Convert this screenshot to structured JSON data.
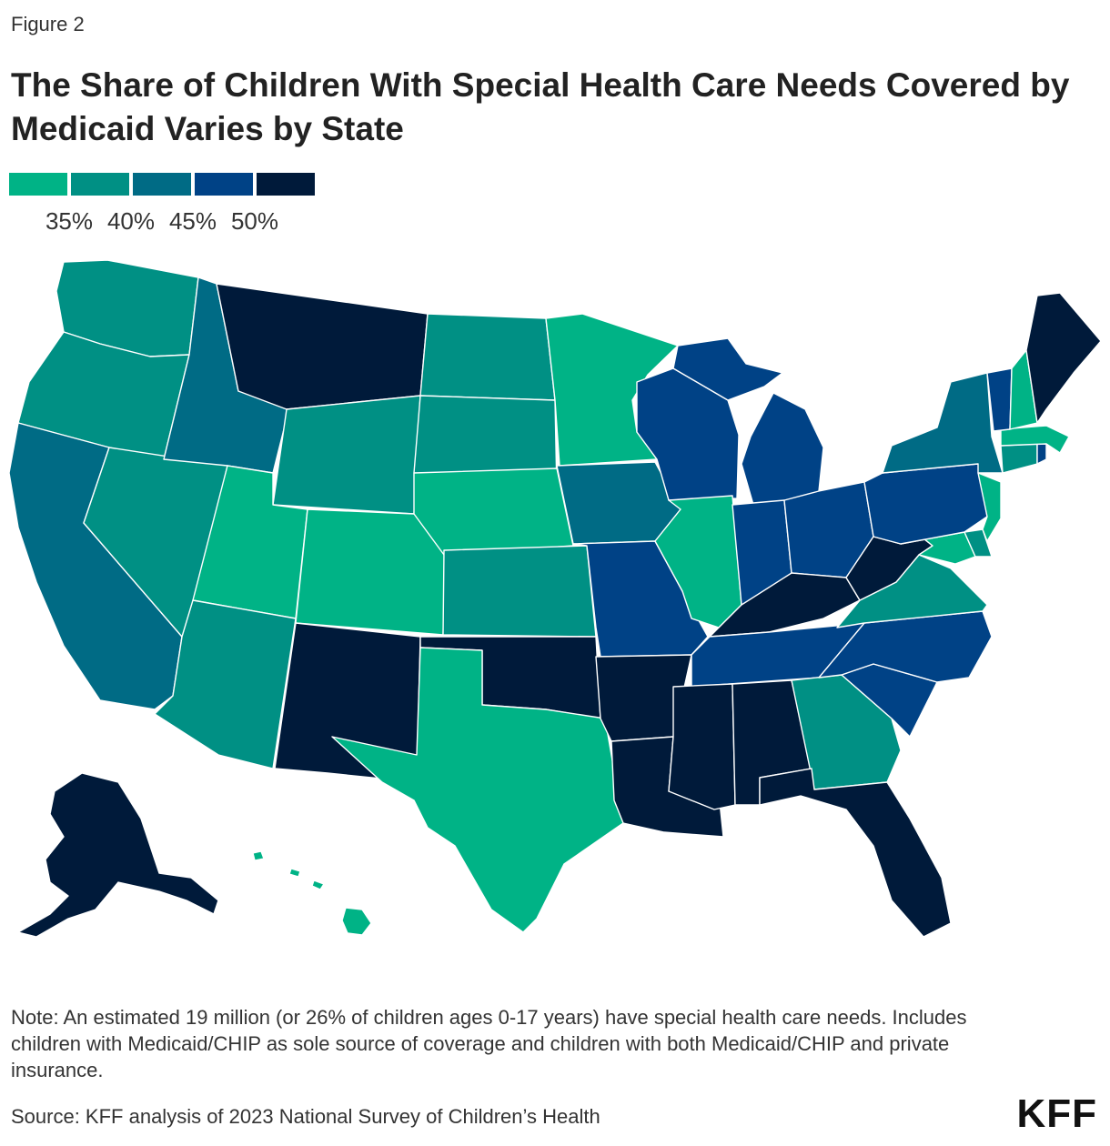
{
  "figure_label": "Figure 2",
  "title": "The Share of Children With Special Health Care Needs Covered by Medicaid Varies by State",
  "legend": {
    "colors": [
      "#00b386",
      "#009084",
      "#006b85",
      "#004286",
      "#001a3a"
    ],
    "ticks": [
      "35%",
      "40%",
      "45%",
      "50%"
    ]
  },
  "chart_data": {
    "type": "choropleth",
    "measure": "Share of children with special health care needs covered by Medicaid",
    "bins": [
      {
        "range": "<35%",
        "color": "#00b386"
      },
      {
        "range": "35%-40%",
        "color": "#009084"
      },
      {
        "range": "40%-45%",
        "color": "#006b85"
      },
      {
        "range": "45%-50%",
        "color": "#004286"
      },
      {
        "range": ">=50%",
        "color": "#001a3a"
      }
    ],
    "states": {
      "WA": 1,
      "OR": 1,
      "CA": 2,
      "NV": 1,
      "ID": 2,
      "MT": 4,
      "WY": 1,
      "UT": 0,
      "CO": 0,
      "AZ": 1,
      "NM": 4,
      "ND": 1,
      "SD": 1,
      "NE": 0,
      "KS": 1,
      "OK": 4,
      "TX": 0,
      "MN": 0,
      "IA": 2,
      "MO": 3,
      "AR": 4,
      "LA": 4,
      "WI": 3,
      "IL": 0,
      "MI": 3,
      "IN": 3,
      "OH": 3,
      "KY": 4,
      "TN": 3,
      "MS": 4,
      "AL": 4,
      "GA": 1,
      "FL": 4,
      "SC": 3,
      "NC": 3,
      "VA": 1,
      "WV": 4,
      "PA": 3,
      "NY": 2,
      "VT": 3,
      "NH": 0,
      "ME": 4,
      "MA": 0,
      "RI": 3,
      "CT": 1,
      "NJ": 0,
      "DE": 1,
      "MD": 0,
      "AK": 4,
      "HI": 0
    }
  },
  "note": "Note: An estimated 19 million (or 26% of children ages 0-17 years) have special health care needs. Includes children with Medicaid/CHIP as sole source of coverage and children with both Medicaid/CHIP and private insurance.",
  "source": "Source: KFF analysis of 2023 National Survey of Children’s Health",
  "logo": "KFF"
}
